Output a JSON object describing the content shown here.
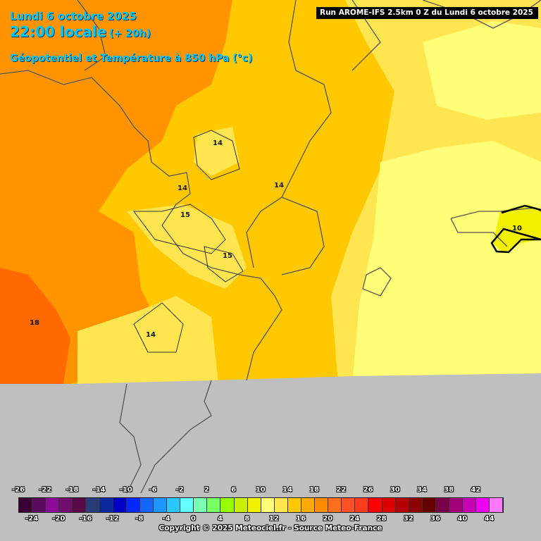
{
  "header": {
    "date_line": "Lundi 6 octobre 2025",
    "time_line": "22:00 locale",
    "lead_time": "(+ 20h)",
    "parameter": "Géopotentiel et Température à 850 hPa (°c)"
  },
  "run_banner": "Run AROME-IFS 2.5km 0 Z du Lundi 6 octobre 2025",
  "isotherm_labels": [
    "14",
    "14",
    "14",
    "15",
    "15",
    "18",
    "14",
    "10"
  ],
  "legend": {
    "top_ticks": [
      "-26",
      "-22",
      "-18",
      "-14",
      "-10",
      "-6",
      "-2",
      "2",
      "6",
      "10",
      "14",
      "18",
      "22",
      "26",
      "30",
      "34",
      "38",
      "42"
    ],
    "bottom_ticks": [
      "-24",
      "-20",
      "-16",
      "-12",
      "-8",
      "-4",
      "0",
      "4",
      "8",
      "12",
      "16",
      "20",
      "24",
      "28",
      "32",
      "36",
      "40",
      "44"
    ],
    "colors": [
      "#3b0033",
      "#5a0a5a",
      "#8c0a96",
      "#6e0f6e",
      "#5a0a46",
      "#283c78",
      "#0a289b",
      "#0000c8",
      "#0028ff",
      "#1464ff",
      "#1e96ff",
      "#28c8ff",
      "#64ffff",
      "#78ffb4",
      "#78ff64",
      "#96ff00",
      "#c8f000",
      "#f0f000",
      "#ffff78",
      "#ffe650",
      "#ffc800",
      "#ffaa00",
      "#ff8c00",
      "#ff6e1e",
      "#ff5028",
      "#ff3c1e",
      "#ff0000",
      "#dc0000",
      "#b40000",
      "#8c0000",
      "#640000",
      "#780046",
      "#a00078",
      "#c800b4",
      "#f000f0",
      "#ff78ff"
    ]
  },
  "copyright": "Copyright © 2025 Meteociel.fr - Source Meteo-France",
  "colors": {
    "orange_dark": "#ff6a00",
    "orange": "#ff9400",
    "amber": "#ffc800",
    "yellow": "#ffe650",
    "pale_yellow": "#ffff78",
    "lime": "#f0f000",
    "outside_domain": "#bfbfbf"
  }
}
